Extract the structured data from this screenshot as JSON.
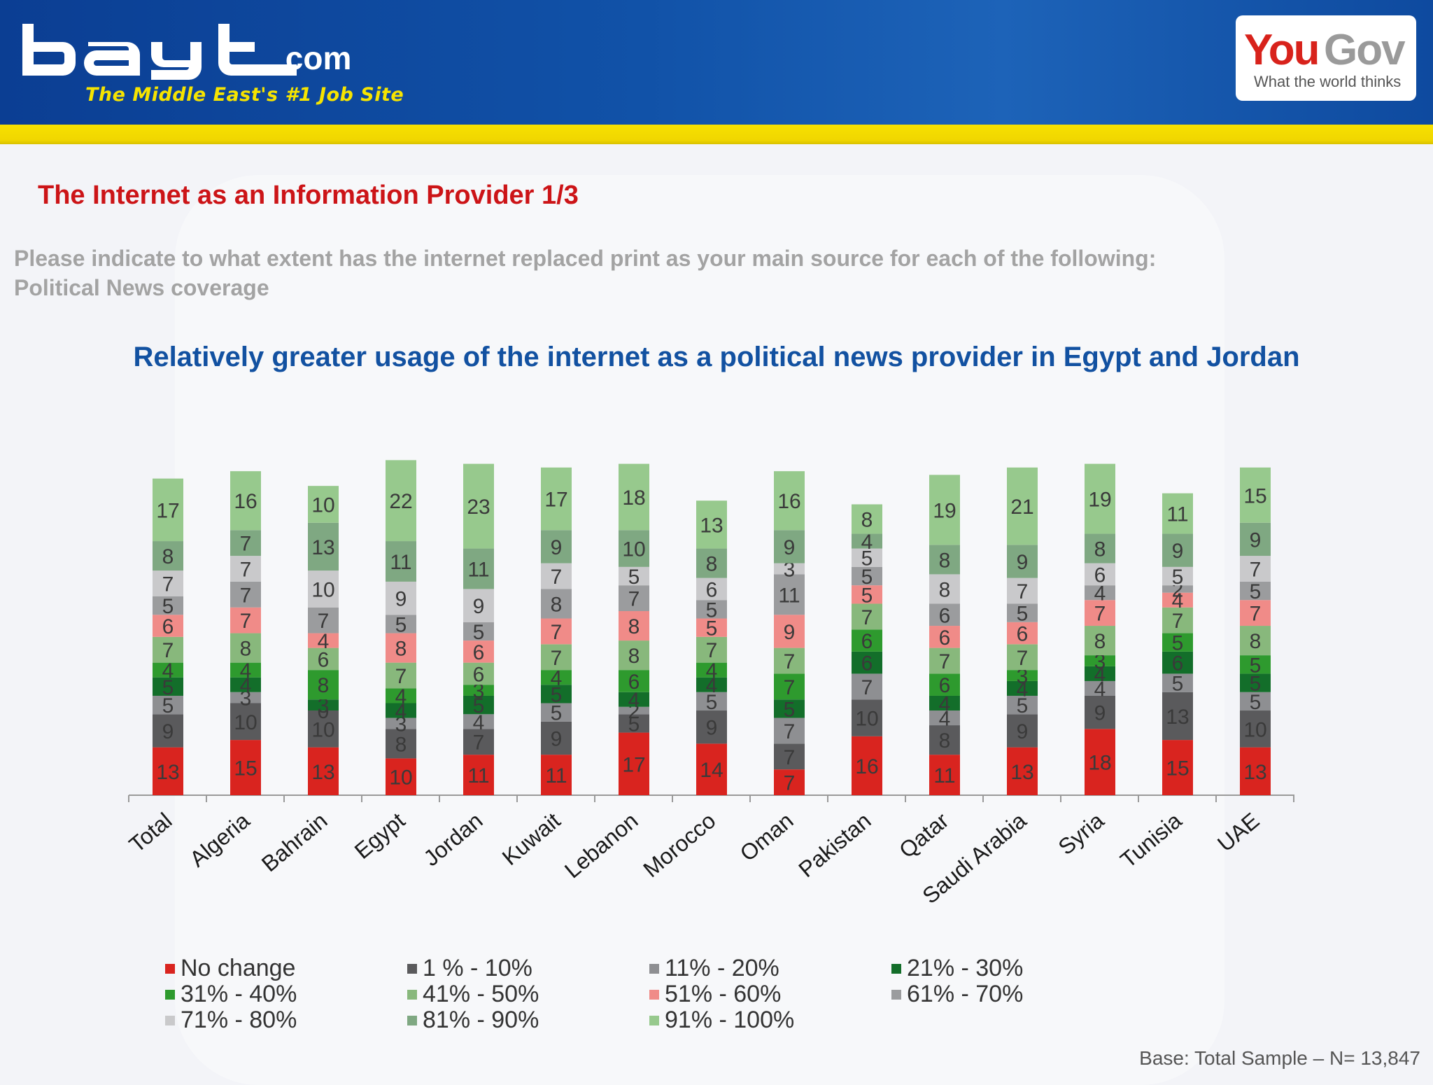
{
  "header": {
    "logo_text": "bayt.com",
    "tagline": "The Middle East's #1 Job Site",
    "partner_logo_you": "You",
    "partner_logo_gov": "Gov",
    "partner_tagline": "What the world thinks"
  },
  "page_title": "The Internet as an Information Provider 1/3",
  "question_line1": "Please indicate to what extent has the internet replaced print as your main source for each of the following:",
  "question_line2": "Political News coverage",
  "base_note": "Base: Total Sample – N= 13,847",
  "chart_data": {
    "type": "bar",
    "stacked": true,
    "title": "Relatively greater usage of the internet as a political news provider in Egypt and Jordan",
    "categories": [
      "Total",
      "Algeria",
      "Bahrain",
      "Egypt",
      "Jordan",
      "Kuwait",
      "Lebanon",
      "Morocco",
      "Oman",
      "Pakistan",
      "Qatar",
      "Saudi Arabia",
      "Syria",
      "Tunisia",
      "UAE"
    ],
    "series": [
      {
        "name": "No change",
        "color": "#d9241f",
        "values": [
          13,
          15,
          13,
          10,
          11,
          11,
          17,
          14,
          7,
          16,
          11,
          13,
          18,
          15,
          13
        ]
      },
      {
        "name": "1 % - 10%",
        "color": "#5a5a5c",
        "values": [
          9,
          10,
          10,
          8,
          7,
          9,
          5,
          9,
          7,
          10,
          8,
          9,
          9,
          13,
          10
        ]
      },
      {
        "name": "11% - 20%",
        "color": "#8e8f92",
        "values": [
          5,
          3,
          0,
          3,
          4,
          5,
          2,
          5,
          7,
          7,
          4,
          5,
          4,
          5,
          5
        ]
      },
      {
        "name": "21% - 30%",
        "color": "#136e2a",
        "values": [
          5,
          4,
          3,
          4,
          5,
          5,
          4,
          4,
          5,
          6,
          4,
          4,
          4,
          6,
          5
        ]
      },
      {
        "name": "31% - 40%",
        "color": "#2e9a2e",
        "values": [
          4,
          4,
          8,
          4,
          3,
          4,
          6,
          4,
          7,
          6,
          6,
          3,
          3,
          5,
          5
        ]
      },
      {
        "name": "41% - 50%",
        "color": "#88b87c",
        "values": [
          7,
          8,
          6,
          7,
          6,
          7,
          8,
          7,
          7,
          7,
          7,
          7,
          8,
          7,
          8
        ]
      },
      {
        "name": "51% - 60%",
        "color": "#f08b88",
        "values": [
          6,
          7,
          4,
          8,
          6,
          7,
          8,
          5,
          9,
          5,
          6,
          6,
          7,
          4,
          7
        ]
      },
      {
        "name": "61% - 70%",
        "color": "#9b9c9e",
        "values": [
          5,
          7,
          7,
          5,
          5,
          8,
          7,
          5,
          11,
          5,
          6,
          5,
          4,
          2,
          5
        ]
      },
      {
        "name": "71% - 80%",
        "color": "#c9c9cb",
        "values": [
          7,
          7,
          10,
          9,
          9,
          7,
          5,
          6,
          3,
          5,
          8,
          7,
          6,
          5,
          7
        ]
      },
      {
        "name": "81% - 90%",
        "color": "#7fa882",
        "values": [
          8,
          7,
          13,
          11,
          11,
          9,
          10,
          8,
          9,
          4,
          8,
          9,
          8,
          9,
          9
        ]
      },
      {
        "name": "91% - 100%",
        "color": "#97c98d",
        "values": [
          17,
          16,
          10,
          22,
          23,
          17,
          18,
          13,
          16,
          8,
          19,
          21,
          19,
          11,
          15
        ]
      }
    ],
    "legend_position": "bottom",
    "grid": false
  }
}
